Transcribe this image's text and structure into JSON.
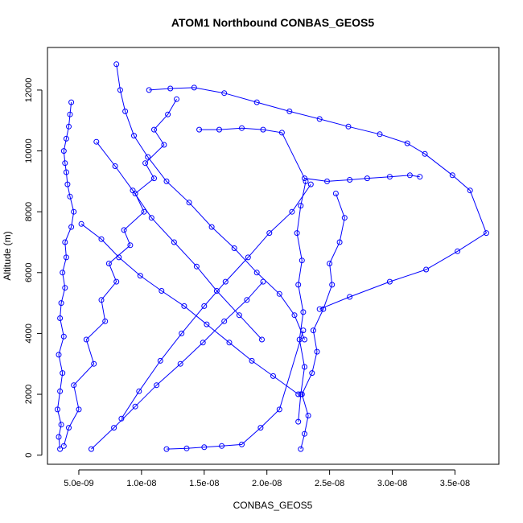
{
  "chart_data": {
    "type": "line",
    "title": "ATOM1 Northbound CONBAS_GEOS5",
    "xlabel": "CONBAS_GEOS5",
    "ylabel": "Altitude (m)",
    "xlim": [
      2.5e-09,
      3.85e-08
    ],
    "ylim": [
      -300,
      13400
    ],
    "xticks": [
      5e-09,
      1e-08,
      1.5e-08,
      2e-08,
      2.5e-08,
      3e-08,
      3.5e-08
    ],
    "xtick_labels": [
      "5.0e-09",
      "1.0e-08",
      "1.5e-08",
      "2.0e-08",
      "2.5e-08",
      "3.0e-08",
      "3.5e-08"
    ],
    "yticks": [
      0,
      2000,
      4000,
      6000,
      8000,
      10000,
      12000
    ],
    "ytick_labels": [
      "0",
      "2000",
      "4000",
      "6000",
      "8000",
      "10000",
      "12000"
    ],
    "grid": false,
    "legend": "none",
    "colors": {
      "series": "#0000ff",
      "axis": "#000000",
      "background": "#ffffff"
    },
    "series": [
      {
        "x": [
          3.5e-09,
          3.4e-09,
          3.6e-09,
          3.3e-09,
          3.5e-09,
          3.7e-09,
          3.4e-09,
          3.8e-09,
          3.5e-09,
          3.6e-09,
          3.9e-09,
          3.7e-09,
          4e-09,
          3.9e-09,
          4.4e-09,
          4.6e-09,
          4.3e-09,
          4.1e-09,
          4e-09,
          3.9e-09,
          3.8e-09,
          4e-09,
          4.2e-09,
          4.3e-09,
          4.4e-09
        ],
        "y": [
          200,
          600,
          1000,
          1500,
          2100,
          2700,
          3300,
          3900,
          4500,
          5000,
          5500,
          6000,
          6500,
          7000,
          7500,
          8000,
          8500,
          8900,
          9300,
          9600,
          10000,
          10400,
          10800,
          11200,
          11600
        ]
      },
      {
        "x": [
          3.8e-09,
          4.2e-09,
          5e-09,
          4.6e-09,
          6.2e-09,
          5.6e-09,
          7.1e-09,
          6.8e-09,
          8e-09,
          7.4e-09,
          9.1e-09,
          8.6e-09,
          1.02e-08,
          9.5e-09,
          1.1e-08,
          1.03e-08,
          1.18e-08,
          1.1e-08,
          1.21e-08,
          1.28e-08
        ],
        "y": [
          300,
          900,
          1500,
          2300,
          3000,
          3800,
          4400,
          5100,
          5700,
          6300,
          6900,
          7400,
          8000,
          8600,
          9100,
          9600,
          10200,
          10700,
          11200,
          11700
        ]
      },
      {
        "x": [
          8e-09,
          8.3e-09,
          8.7e-09,
          9.4e-09,
          1.05e-08,
          1.2e-08,
          1.38e-08,
          1.56e-08,
          1.74e-08,
          1.92e-08,
          2.1e-08,
          2.22e-08,
          2.3e-08
        ],
        "y": [
          12850,
          12000,
          11300,
          10500,
          9800,
          9000,
          8300,
          7500,
          6800,
          6000,
          5300,
          4600,
          3800
        ]
      },
      {
        "x": [
          1.06e-08,
          1.23e-08,
          1.42e-08,
          1.66e-08,
          1.92e-08,
          2.18e-08,
          2.42e-08,
          2.65e-08,
          2.9e-08,
          3.12e-08,
          3.26e-08,
          3.48e-08,
          3.62e-08,
          3.75e-08,
          3.52e-08,
          3.27e-08,
          2.98e-08,
          2.66e-08,
          2.42e-08
        ],
        "y": [
          12000,
          12050,
          12080,
          11900,
          11600,
          11300,
          11050,
          10800,
          10550,
          10250,
          9900,
          9200,
          8700,
          7300,
          6700,
          6100,
          5700,
          5200,
          4800
        ]
      },
      {
        "x": [
          1.46e-08,
          1.62e-08,
          1.8e-08,
          1.97e-08,
          2.12e-08,
          2.3e-08,
          2.48e-08,
          2.66e-08,
          2.8e-08,
          2.98e-08,
          3.14e-08,
          3.22e-08
        ],
        "y": [
          10700,
          10700,
          10750,
          10700,
          10600,
          9100,
          9000,
          9050,
          9100,
          9150,
          9200,
          9150
        ]
      },
      {
        "x": [
          2.27e-08,
          2.3e-08,
          2.33e-08,
          2.28e-08,
          2.36e-08,
          2.4e-08,
          2.37e-08,
          2.45e-08,
          2.52e-08,
          2.5e-08,
          2.58e-08,
          2.62e-08,
          2.55e-08
        ],
        "y": [
          200,
          700,
          1300,
          2000,
          2700,
          3400,
          4100,
          4800,
          5600,
          6300,
          7000,
          7800,
          8600
        ]
      },
      {
        "x": [
          2.31e-08,
          2.27e-08,
          2.24e-08,
          2.28e-08,
          2.25e-08,
          2.29e-08,
          2.26e-08,
          2.3e-08,
          2.27e-08,
          2.25e-08
        ],
        "y": [
          9000,
          8200,
          7300,
          6400,
          5600,
          4700,
          3800,
          2900,
          2000,
          1100
        ]
      },
      {
        "x": [
          6e-09,
          7.8e-09,
          9.5e-09,
          1.12e-08,
          1.31e-08,
          1.49e-08,
          1.66e-08,
          1.84e-08,
          1.97e-08
        ],
        "y": [
          200,
          900,
          1600,
          2300,
          3000,
          3700,
          4400,
          5100,
          5700
        ]
      },
      {
        "x": [
          1.2e-08,
          1.36e-08,
          1.5e-08,
          1.64e-08,
          1.8e-08,
          1.95e-08,
          2.1e-08,
          2.29e-08
        ],
        "y": [
          200,
          220,
          260,
          300,
          350,
          900,
          1500,
          4100
        ]
      },
      {
        "x": [
          5.2e-09,
          6.8e-09,
          8.2e-09,
          9.9e-09,
          1.16e-08,
          1.34e-08,
          1.52e-08,
          1.7e-08,
          1.88e-08,
          2.05e-08,
          2.25e-08
        ],
        "y": [
          7600,
          7100,
          6500,
          5900,
          5400,
          4900,
          4300,
          3700,
          3100,
          2600,
          2000
        ]
      },
      {
        "x": [
          6.4e-09,
          7.9e-09,
          9.3e-09,
          1.08e-08,
          1.26e-08,
          1.44e-08,
          1.6e-08,
          1.78e-08,
          1.96e-08
        ],
        "y": [
          10300,
          9500,
          8700,
          7800,
          7000,
          6200,
          5400,
          4600,
          3800
        ]
      },
      {
        "x": [
          8.4e-09,
          9.8e-09,
          1.15e-08,
          1.32e-08,
          1.5e-08,
          1.67e-08,
          1.85e-08,
          2.02e-08,
          2.2e-08,
          2.35e-08
        ],
        "y": [
          1200,
          2100,
          3100,
          4000,
          4900,
          5700,
          6500,
          7300,
          8000,
          8900
        ]
      }
    ]
  }
}
